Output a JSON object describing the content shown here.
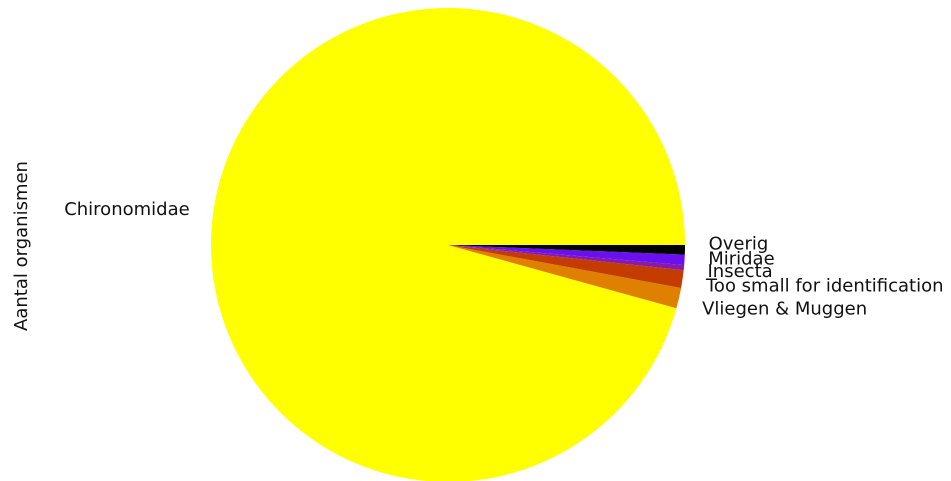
{
  "chart_data": {
    "type": "pie",
    "title": "",
    "ylabel": "Aantal organismen",
    "legend": "none",
    "slices": [
      {
        "label": "Chironomidae",
        "value": 95.7,
        "color": "#ffff00"
      },
      {
        "label": "Vliegen & Muggen",
        "value": 1.4,
        "color": "#e08000"
      },
      {
        "label": "Too small for identification",
        "value": 1.2,
        "color": "#c43c00"
      },
      {
        "label": "Insecta",
        "value": 0.35,
        "color": "#8a1aa8"
      },
      {
        "label": "Miridae",
        "value": 0.7,
        "color": "#6a10f0"
      },
      {
        "label": "Overig",
        "value": 0.65,
        "color": "#000000"
      }
    ]
  }
}
